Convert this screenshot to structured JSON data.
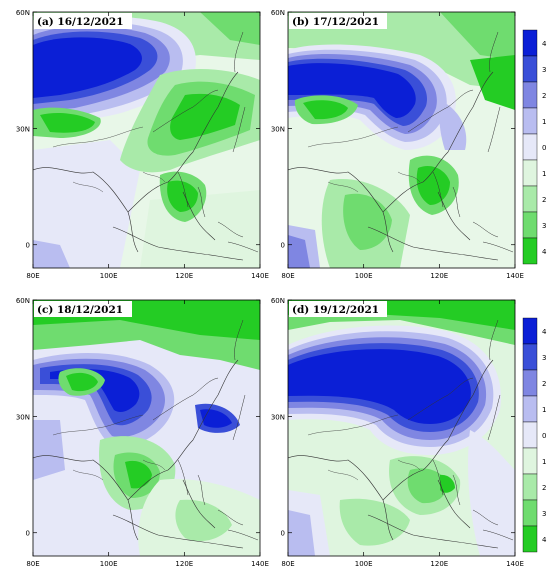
{
  "figure": {
    "panels": [
      {
        "id": "a",
        "title": "(a) 16/12/2021"
      },
      {
        "id": "b",
        "title": "(b) 17/12/2021"
      },
      {
        "id": "c",
        "title": "(c) 18/12/2021"
      },
      {
        "id": "d",
        "title": "(d) 19/12/2021"
      }
    ],
    "lon_ticks": [
      "80E",
      "100E",
      "120E",
      "140E"
    ],
    "lat_ticks": [
      "60N",
      "30N",
      "0"
    ]
  },
  "chart_data": {
    "type": "heatmap",
    "x_range": [
      80,
      140
    ],
    "y_range": [
      -6,
      60
    ],
    "colorbar": {
      "labels": [
        "4",
        "3",
        "2",
        "1",
        "0",
        "-1",
        "-2",
        "-3",
        "-4"
      ],
      "display_labels": [
        "4",
        "3",
        "2",
        "1",
        "0",
        "1",
        "2",
        "3",
        "4"
      ],
      "colors": [
        "#0b1fd6",
        "#3a4fd8",
        "#7f86e2",
        "#b9bdf0",
        "#e6e8f8",
        "#dff5df",
        "#a9eaa9",
        "#6fdc6f",
        "#24cc24"
      ]
    },
    "panels": [
      {
        "id": "a",
        "date": "16/12/2021"
      },
      {
        "id": "b",
        "date": "17/12/2021"
      },
      {
        "id": "c",
        "date": "18/12/2021"
      },
      {
        "id": "d",
        "date": "19/12/2021"
      }
    ]
  }
}
